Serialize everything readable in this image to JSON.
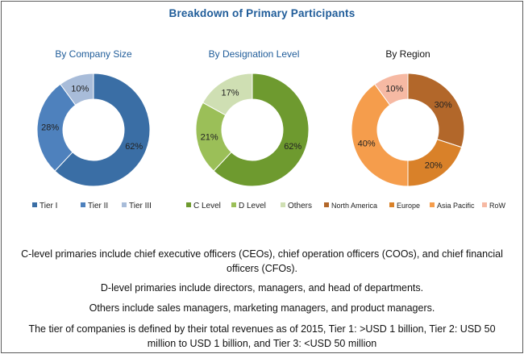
{
  "title": "Breakdown of Primary Participants",
  "chart_data": [
    {
      "type": "pie",
      "title": "By Company Size",
      "categories": [
        "Tier I",
        "Tier II",
        "Tier III"
      ],
      "values": [
        62,
        28,
        10
      ],
      "labels": [
        "62%",
        "28%",
        "10%"
      ],
      "colors": [
        "#3a6ea5",
        "#4e81bd",
        "#a8bcd9"
      ],
      "legend": "bottom"
    },
    {
      "type": "pie",
      "title": "By Designation Level",
      "categories": [
        "C Level",
        "D Level",
        "Others"
      ],
      "values": [
        62,
        21,
        17
      ],
      "labels": [
        "62%",
        "21%",
        "17%"
      ],
      "colors": [
        "#6e9a2f",
        "#9bbf58",
        "#cfdfb3"
      ],
      "legend": "bottom"
    },
    {
      "type": "pie",
      "title": "By Region",
      "categories": [
        "North America",
        "Europe",
        "Asia Pacific",
        "RoW"
      ],
      "values": [
        30,
        20,
        40,
        10
      ],
      "labels": [
        "30%",
        "20%",
        "40%",
        "10%"
      ],
      "colors": [
        "#b2672a",
        "#d98129",
        "#f59d4c",
        "#f6b9a3"
      ],
      "legend": "bottom"
    }
  ],
  "notes": [
    "C-level primaries include chief executive officers (CEOs), chief operation officers (COOs), and chief financial officers (CFOs).",
    "D-level primaries include directors, managers, and head of departments.",
    "Others include sales managers, marketing managers, and product managers.",
    "The tier of companies is defined by their total revenues as of 2015, Tier 1: >USD 1 billion, Tier 2: USD 50 million to USD 1 billion, and Tier 3: <USD 50 million"
  ]
}
